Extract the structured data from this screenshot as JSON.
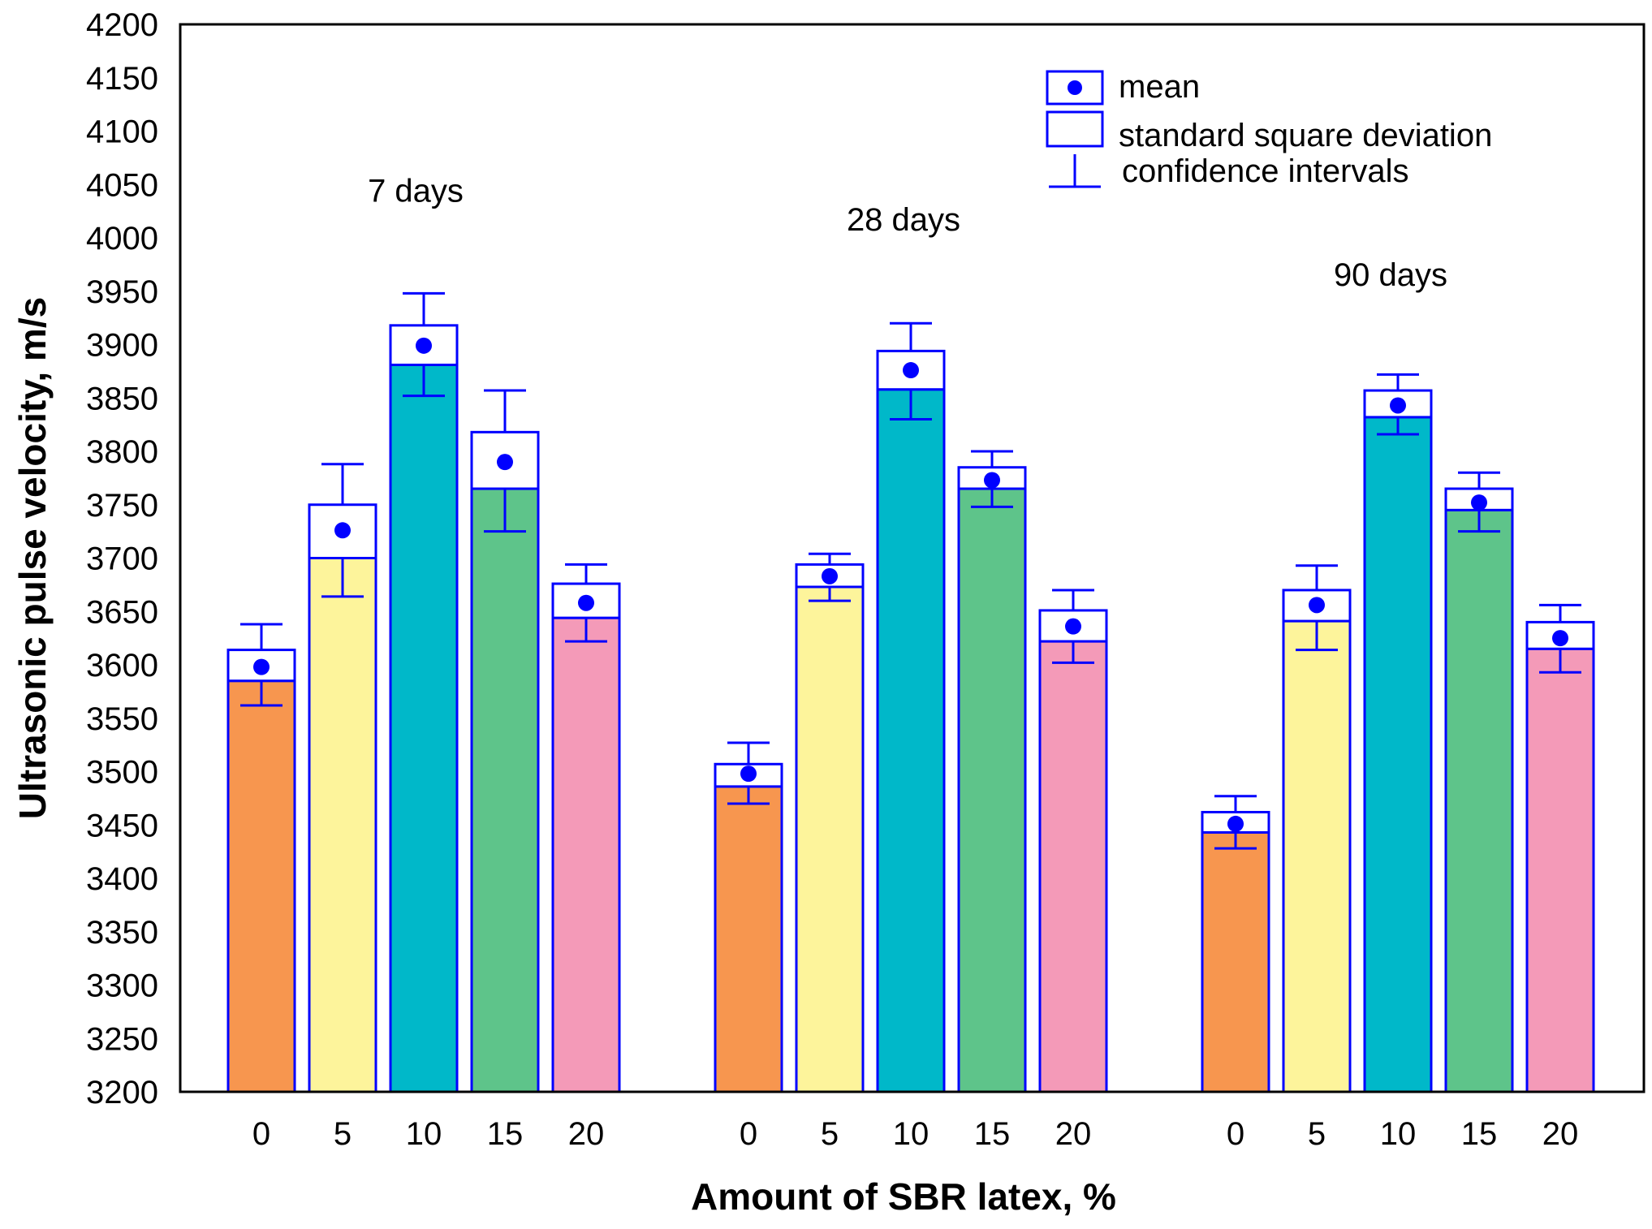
{
  "chart_data": {
    "type": "bar",
    "xlabel": "Amount of SBR latex, %",
    "ylabel": "Ultrasonic pulse velocity, m/s",
    "ylim": [
      3200,
      4200
    ],
    "ytick_step": 50,
    "categories": [
      "0",
      "5",
      "10",
      "15",
      "20"
    ],
    "category_colors": [
      "#f7964f",
      "#fdf49b",
      "#00b8c9",
      "#5ec48a",
      "#f49ab8"
    ],
    "groups": [
      {
        "label": "7 days",
        "series": [
          {
            "category": "0",
            "mean": 3598,
            "sd_low": 3585,
            "sd_high": 3614,
            "ci_low": 3562,
            "ci_high": 3638
          },
          {
            "category": "5",
            "mean": 3726,
            "sd_low": 3700,
            "sd_high": 3750,
            "ci_low": 3664,
            "ci_high": 3788
          },
          {
            "category": "10",
            "mean": 3899,
            "sd_low": 3881,
            "sd_high": 3918,
            "ci_low": 3852,
            "ci_high": 3948
          },
          {
            "category": "15",
            "mean": 3790,
            "sd_low": 3765,
            "sd_high": 3818,
            "ci_low": 3725,
            "ci_high": 3857
          },
          {
            "category": "20",
            "mean": 3658,
            "sd_low": 3644,
            "sd_high": 3676,
            "ci_low": 3622,
            "ci_high": 3694
          }
        ]
      },
      {
        "label": "28 days",
        "series": [
          {
            "category": "0",
            "mean": 3498,
            "sd_low": 3486,
            "sd_high": 3507,
            "ci_low": 3470,
            "ci_high": 3527
          },
          {
            "category": "5",
            "mean": 3683,
            "sd_low": 3673,
            "sd_high": 3694,
            "ci_low": 3660,
            "ci_high": 3704
          },
          {
            "category": "10",
            "mean": 3876,
            "sd_low": 3858,
            "sd_high": 3894,
            "ci_low": 3830,
            "ci_high": 3920
          },
          {
            "category": "15",
            "mean": 3773,
            "sd_low": 3765,
            "sd_high": 3785,
            "ci_low": 3748,
            "ci_high": 3800
          },
          {
            "category": "20",
            "mean": 3636,
            "sd_low": 3622,
            "sd_high": 3651,
            "ci_low": 3602,
            "ci_high": 3670
          }
        ]
      },
      {
        "label": "90 days",
        "series": [
          {
            "category": "0",
            "mean": 3451,
            "sd_low": 3443,
            "sd_high": 3462,
            "ci_low": 3428,
            "ci_high": 3477
          },
          {
            "category": "5",
            "mean": 3656,
            "sd_low": 3641,
            "sd_high": 3670,
            "ci_low": 3614,
            "ci_high": 3693
          },
          {
            "category": "10",
            "mean": 3843,
            "sd_low": 3832,
            "sd_high": 3857,
            "ci_low": 3816,
            "ci_high": 3872
          },
          {
            "category": "15",
            "mean": 3752,
            "sd_low": 3745,
            "sd_high": 3765,
            "ci_low": 3725,
            "ci_high": 3780
          },
          {
            "category": "20",
            "mean": 3625,
            "sd_low": 3615,
            "sd_high": 3640,
            "ci_low": 3593,
            "ci_high": 3656
          }
        ]
      }
    ],
    "legend": {
      "position": "top-right",
      "items": [
        {
          "kind": "mean",
          "label": "mean"
        },
        {
          "kind": "sd",
          "label": "standard square deviation"
        },
        {
          "kind": "ci",
          "label": "confidence intervals"
        }
      ]
    },
    "colors": {
      "marker": "#0000ff",
      "frame": "#000000",
      "background": "#ffffff"
    }
  }
}
